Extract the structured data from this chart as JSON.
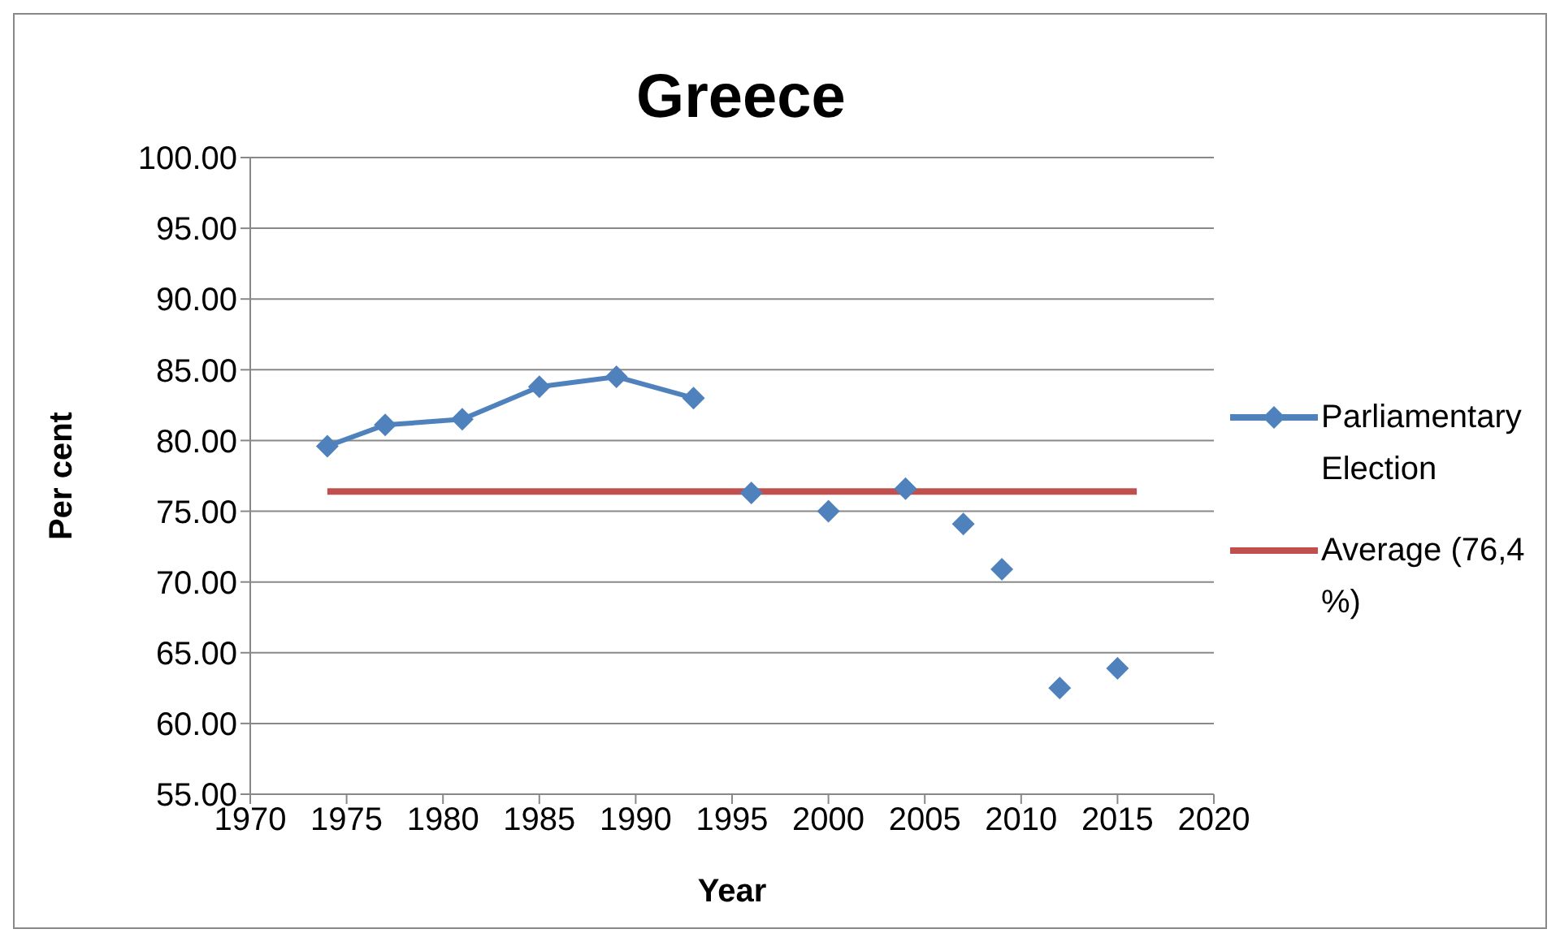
{
  "chart_data": {
    "type": "line",
    "title": "Greece",
    "xlabel": "Year",
    "ylabel": "Per cent",
    "xlim": [
      1970,
      2020
    ],
    "xticks": [
      1970,
      1975,
      1980,
      1985,
      1990,
      1995,
      2000,
      2005,
      2010,
      2015,
      2020
    ],
    "ylim": [
      55,
      100
    ],
    "yticks": [
      {
        "value": 55,
        "label": "55.00"
      },
      {
        "value": 60,
        "label": "60.00"
      },
      {
        "value": 65,
        "label": "65.00"
      },
      {
        "value": 70,
        "label": "70.00"
      },
      {
        "value": 75,
        "label": "75.00"
      },
      {
        "value": 80,
        "label": "80.00"
      },
      {
        "value": 85,
        "label": "85.00"
      },
      {
        "value": 90,
        "label": "90.00"
      },
      {
        "value": 95,
        "label": "95.00"
      },
      {
        "value": 100,
        "label": "100.00"
      }
    ],
    "grid": "y",
    "legend": "right",
    "series": [
      {
        "name": "Parliamentary Election",
        "color": "#4f81bd",
        "marker": "diamond",
        "line_style": "solid",
        "x": [
          1974,
          1977,
          1981,
          1985,
          1989,
          1993
        ],
        "values": [
          79.6,
          81.1,
          81.5,
          83.8,
          84.5,
          83.0
        ]
      },
      {
        "type": "scatter",
        "color": "#4f81bd",
        "marker": "diamond",
        "x": [
          1996,
          2000,
          2004,
          2007,
          2009,
          2012,
          2015
        ],
        "values": [
          76.3,
          75.0,
          76.6,
          74.1,
          70.9,
          62.5,
          63.9
        ]
      },
      {
        "name": "Average (76,4 %)",
        "color": "#c0504d",
        "marker": "none",
        "line_style": "solid",
        "x": [
          1974,
          2016
        ],
        "values": [
          76.4,
          76.4
        ]
      }
    ]
  }
}
